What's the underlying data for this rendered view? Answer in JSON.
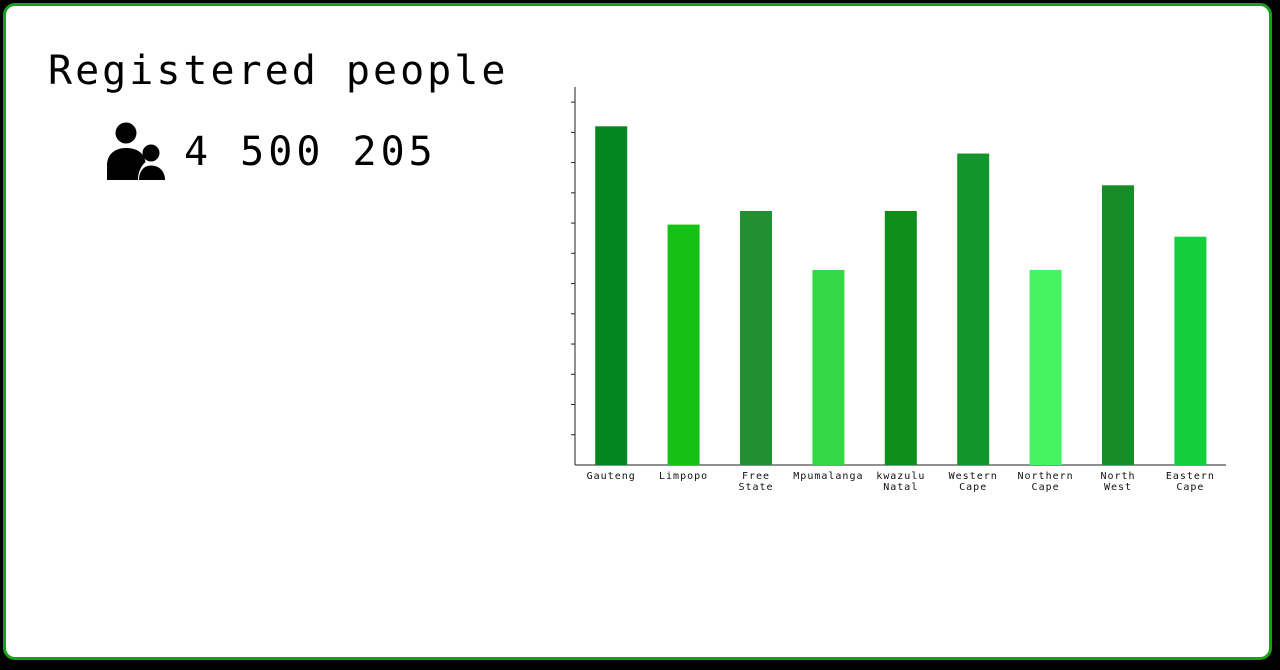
{
  "card": {
    "title": "Registered people",
    "total": "4 500 205",
    "icon": "users-icon",
    "border_color": "#1aa11a"
  },
  "chart_data": {
    "type": "bar",
    "title": "",
    "xlabel": "",
    "ylabel": "",
    "y_ticks": "unlabeled",
    "grid": false,
    "legend": "none",
    "ylim": [
      0,
      12.5
    ],
    "categories": [
      [
        "Gauteng"
      ],
      [
        "Limpopo"
      ],
      [
        "Free",
        "State"
      ],
      [
        "Mpumalanga"
      ],
      [
        "kwazulu",
        "Natal"
      ],
      [
        "Western",
        "Cape"
      ],
      [
        "Northern",
        "Cape"
      ],
      [
        "North",
        "West"
      ],
      [
        "Eastern",
        "Cape"
      ]
    ],
    "values": [
      11.2,
      7.95,
      8.4,
      6.45,
      8.4,
      10.3,
      6.45,
      9.25,
      7.55
    ],
    "colors": [
      "#04861f",
      "#14c114",
      "#228f32",
      "#33d844",
      "#0f8c1a",
      "#12952a",
      "#45f25f",
      "#168d26",
      "#14cf3c"
    ]
  }
}
